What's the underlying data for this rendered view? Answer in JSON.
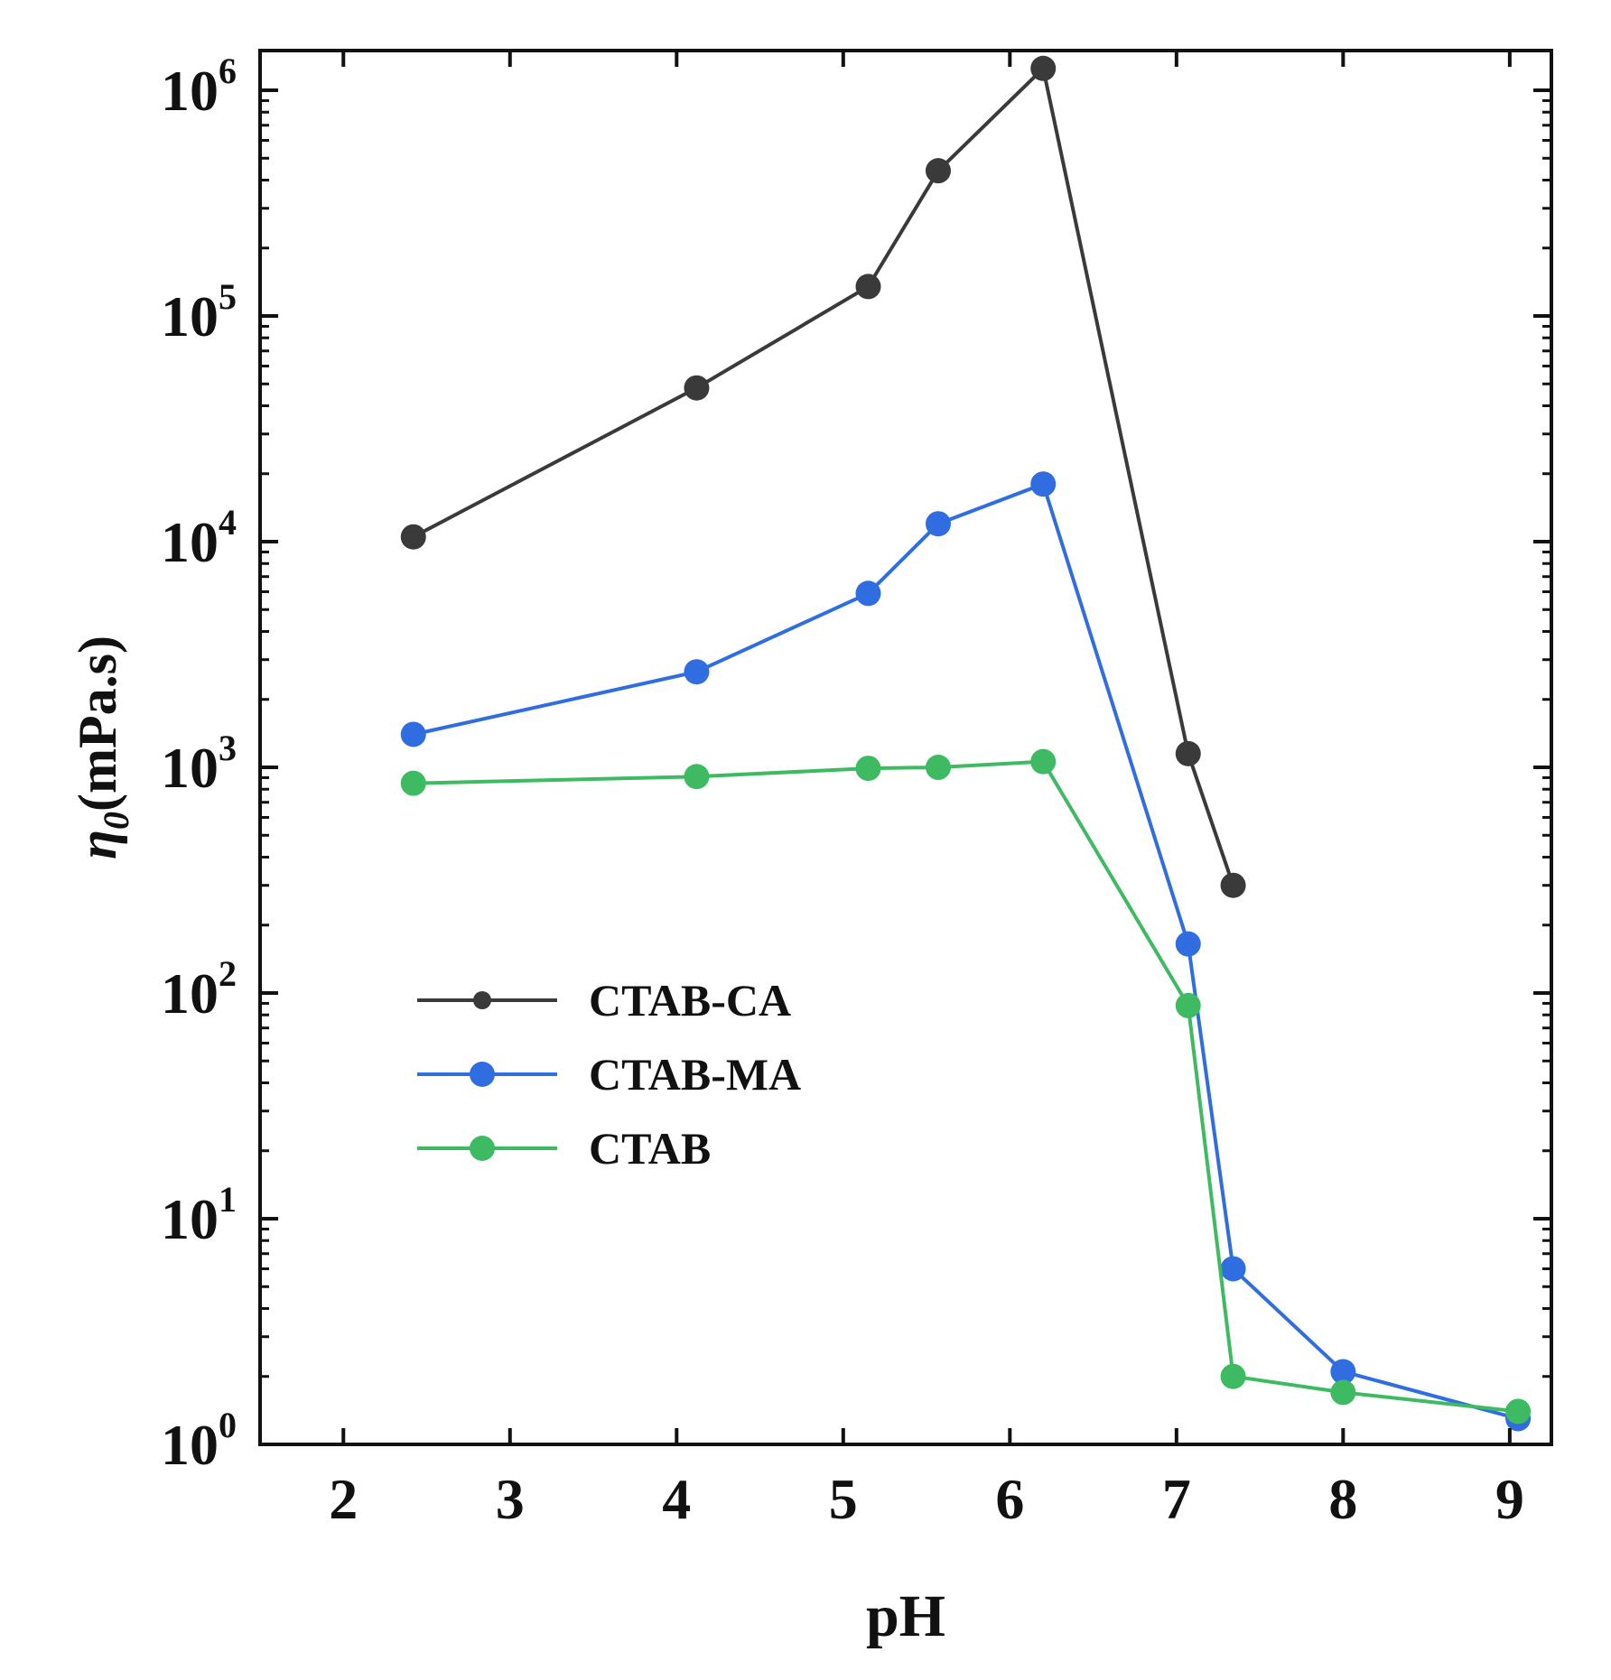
{
  "chart_data": {
    "type": "line",
    "xlabel": "pH",
    "ylabel_symbol": "η",
    "ylabel_subscript": "0",
    "ylabel_units": "(mPa.s)",
    "yscale": "log",
    "xlim": [
      1.5,
      9.25
    ],
    "ylim": [
      1,
      1500000
    ],
    "x_ticks": [
      2,
      3,
      4,
      5,
      6,
      7,
      8,
      9
    ],
    "x_tick_labels": [
      "2",
      "3",
      "4",
      "5",
      "6",
      "7",
      "8",
      "9"
    ],
    "y_ticks": [
      {
        "value": 1,
        "base": "10",
        "exp": "0"
      },
      {
        "value": 10,
        "base": "10",
        "exp": "1"
      },
      {
        "value": 100,
        "base": "10",
        "exp": "2"
      },
      {
        "value": 1000,
        "base": "10",
        "exp": "3"
      },
      {
        "value": 10000,
        "base": "10",
        "exp": "4"
      },
      {
        "value": 100000,
        "base": "10",
        "exp": "5"
      },
      {
        "value": 1000000,
        "base": "10",
        "exp": "6"
      }
    ],
    "legend_position": "center-left",
    "series": [
      {
        "name": "CTAB-CA",
        "color": "#3a3a3a",
        "x": [
          2.42,
          4.12,
          5.15,
          5.57,
          6.2,
          7.07,
          7.34
        ],
        "y": [
          10500,
          48000,
          135000,
          440000,
          1250000,
          1150,
          300
        ]
      },
      {
        "name": "CTAB-MA",
        "color": "#2f6de0",
        "x": [
          2.42,
          4.12,
          5.15,
          5.57,
          6.2,
          7.07,
          7.34,
          8.0,
          9.05
        ],
        "y": [
          1400,
          2650,
          5900,
          12000,
          18000,
          165,
          6,
          2.1,
          1.3
        ]
      },
      {
        "name": "CTAB",
        "color": "#3dba62",
        "x": [
          2.42,
          4.12,
          5.15,
          5.57,
          6.2,
          7.07,
          7.34,
          8.0,
          9.05
        ],
        "y": [
          850,
          910,
          990,
          1000,
          1060,
          88,
          2.0,
          1.7,
          1.4
        ]
      }
    ]
  }
}
